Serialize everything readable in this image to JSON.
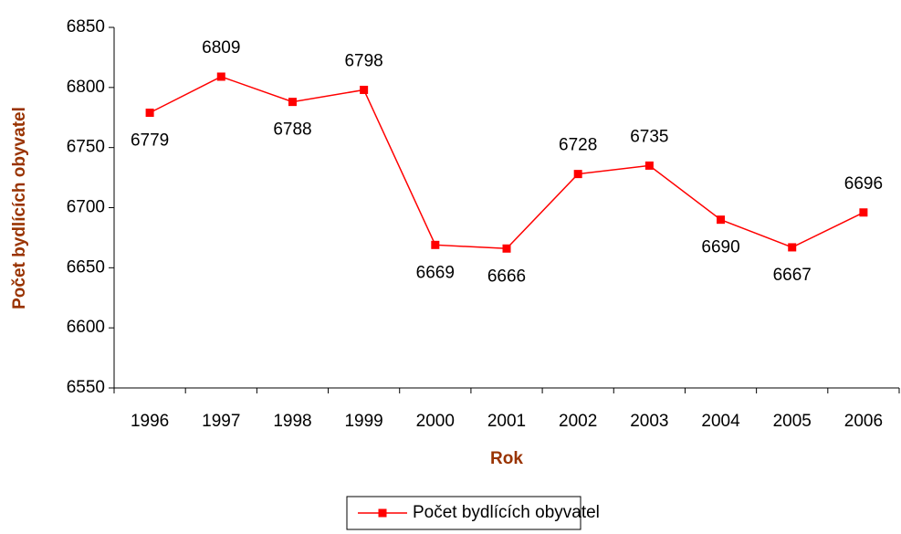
{
  "chart_data": {
    "type": "line",
    "x_label": "Rok",
    "y_label": "Počet bydlících obyvatel",
    "categories": [
      "1996",
      "1997",
      "1998",
      "1999",
      "2000",
      "2001",
      "2002",
      "2003",
      "2004",
      "2005",
      "2006"
    ],
    "series": [
      {
        "name": "Počet bydlících obyvatel",
        "color": "#ff0000",
        "values": [
          6779,
          6809,
          6788,
          6798,
          6669,
          6666,
          6728,
          6735,
          6690,
          6667,
          6696
        ]
      }
    ],
    "ylim": [
      6550,
      6850
    ],
    "yticks": [
      6550,
      6600,
      6650,
      6700,
      6750,
      6800,
      6850
    ],
    "grid": false,
    "legend": "bottom",
    "label_color": "#993300"
  }
}
